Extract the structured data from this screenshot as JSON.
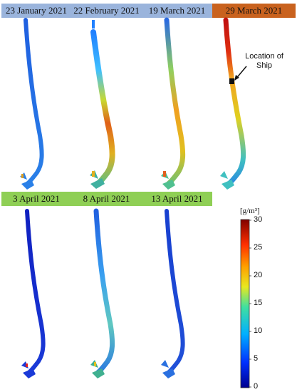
{
  "panels_top": [
    {
      "date": "23 January 2021",
      "style": "blue"
    },
    {
      "date": "22 February 2021",
      "style": "blue"
    },
    {
      "date": "19 March 2021",
      "style": "blue"
    },
    {
      "date": "29 March 2021",
      "style": "orange"
    }
  ],
  "panels_bottom": [
    {
      "date": "3 April 2021",
      "style": "green"
    },
    {
      "date": "8 April 2021",
      "style": "green"
    },
    {
      "date": "13 April 2021",
      "style": "green"
    }
  ],
  "annotation": {
    "line1": "Location of",
    "line2": "Ship"
  },
  "colorbar": {
    "unit": "[g/m³]",
    "ticks": [
      "30",
      "25",
      "20",
      "15",
      "10",
      "5",
      "0"
    ],
    "min": 0,
    "max": 30
  },
  "colors": {
    "low": "#1f4fd8",
    "mid": "#e0d020",
    "high": "#b01010"
  }
}
